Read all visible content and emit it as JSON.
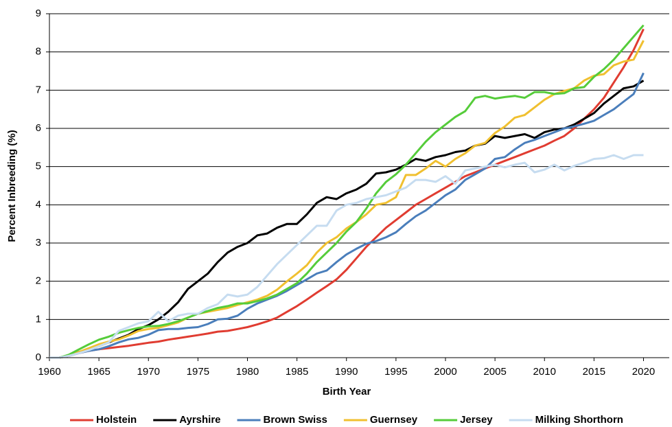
{
  "chart_data": {
    "type": "line",
    "x_label": "Birth Year",
    "y_label": "Percent Inbreeding (%)",
    "x": [
      1960,
      1961,
      1962,
      1963,
      1964,
      1965,
      1966,
      1967,
      1968,
      1969,
      1970,
      1971,
      1972,
      1973,
      1974,
      1975,
      1976,
      1977,
      1978,
      1979,
      1980,
      1981,
      1982,
      1983,
      1984,
      1985,
      1986,
      1987,
      1988,
      1989,
      1990,
      1991,
      1992,
      1993,
      1994,
      1995,
      1996,
      1997,
      1998,
      1999,
      2000,
      2001,
      2002,
      2003,
      2004,
      2005,
      2006,
      2007,
      2008,
      2009,
      2010,
      2011,
      2012,
      2013,
      2014,
      2015,
      2016,
      2017,
      2018,
      2019,
      2020
    ],
    "xlim": [
      1960,
      2022.6
    ],
    "xticks": [
      1960,
      1965,
      1970,
      1975,
      1980,
      1985,
      1990,
      1995,
      2000,
      2005,
      2010,
      2015,
      2020
    ],
    "ylim": [
      0,
      9
    ],
    "yticks": [
      0,
      1,
      2,
      3,
      4,
      5,
      6,
      7,
      8,
      9
    ],
    "grid": true,
    "legend": "bottom",
    "series": [
      {
        "name": "Holstein",
        "color": "#e03c31",
        "values": [
          0,
          0,
          0.05,
          0.12,
          0.18,
          0.22,
          0.25,
          0.28,
          0.31,
          0.35,
          0.39,
          0.42,
          0.47,
          0.51,
          0.55,
          0.59,
          0.63,
          0.68,
          0.7,
          0.75,
          0.8,
          0.87,
          0.95,
          1.05,
          1.2,
          1.35,
          1.52,
          1.7,
          1.87,
          2.05,
          2.3,
          2.6,
          2.9,
          3.15,
          3.4,
          3.6,
          3.8,
          4.0,
          4.15,
          4.3,
          4.45,
          4.6,
          4.75,
          4.85,
          4.95,
          5.05,
          5.15,
          5.25,
          5.35,
          5.45,
          5.55,
          5.68,
          5.8,
          6.0,
          6.25,
          6.5,
          6.8,
          7.2,
          7.6,
          8.05,
          8.6
        ]
      },
      {
        "name": "Ayrshire",
        "color": "#000000",
        "values": [
          0,
          0,
          0.05,
          0.15,
          0.22,
          0.3,
          0.4,
          0.5,
          0.6,
          0.75,
          0.85,
          1.0,
          1.2,
          1.45,
          1.8,
          2.0,
          2.2,
          2.5,
          2.75,
          2.9,
          3.0,
          3.2,
          3.25,
          3.4,
          3.5,
          3.5,
          3.75,
          4.05,
          4.2,
          4.15,
          4.3,
          4.4,
          4.55,
          4.82,
          4.85,
          4.92,
          5.05,
          5.2,
          5.15,
          5.25,
          5.3,
          5.38,
          5.42,
          5.55,
          5.6,
          5.8,
          5.75,
          5.8,
          5.85,
          5.75,
          5.9,
          5.97,
          6.0,
          6.1,
          6.25,
          6.4,
          6.65,
          6.85,
          7.05,
          7.1,
          7.25
        ]
      },
      {
        "name": "Brown Swiss",
        "color": "#4a7ebb",
        "values": [
          0,
          0,
          0.05,
          0.12,
          0.18,
          0.22,
          0.3,
          0.4,
          0.48,
          0.52,
          0.6,
          0.72,
          0.75,
          0.75,
          0.78,
          0.8,
          0.88,
          1.0,
          1.02,
          1.1,
          1.28,
          1.42,
          1.52,
          1.62,
          1.75,
          1.9,
          2.05,
          2.2,
          2.28,
          2.5,
          2.7,
          2.85,
          2.98,
          3.05,
          3.15,
          3.28,
          3.5,
          3.7,
          3.85,
          4.05,
          4.25,
          4.4,
          4.65,
          4.8,
          4.95,
          5.2,
          5.25,
          5.45,
          5.62,
          5.7,
          5.8,
          5.9,
          6.0,
          6.05,
          6.12,
          6.2,
          6.35,
          6.5,
          6.7,
          6.9,
          7.45
        ]
      },
      {
        "name": "Guernsey",
        "color": "#f0c030",
        "values": [
          0,
          0,
          0.05,
          0.15,
          0.25,
          0.35,
          0.42,
          0.48,
          0.58,
          0.7,
          0.75,
          0.78,
          0.85,
          0.92,
          1.05,
          1.15,
          1.2,
          1.25,
          1.3,
          1.38,
          1.45,
          1.52,
          1.62,
          1.78,
          2.0,
          2.2,
          2.42,
          2.75,
          3.0,
          3.15,
          3.38,
          3.55,
          3.75,
          4.0,
          4.05,
          4.2,
          4.78,
          4.78,
          4.95,
          5.15,
          5.0,
          5.2,
          5.35,
          5.55,
          5.62,
          5.88,
          6.05,
          6.28,
          6.35,
          6.55,
          6.75,
          6.9,
          6.98,
          7.05,
          7.25,
          7.38,
          7.42,
          7.65,
          7.75,
          7.8,
          8.3
        ]
      },
      {
        "name": "Jersey",
        "color": "#55cc3a",
        "values": [
          0,
          0,
          0.08,
          0.22,
          0.35,
          0.47,
          0.55,
          0.65,
          0.72,
          0.78,
          0.82,
          0.83,
          0.88,
          0.95,
          1.05,
          1.15,
          1.22,
          1.3,
          1.35,
          1.42,
          1.42,
          1.48,
          1.55,
          1.65,
          1.8,
          1.95,
          2.2,
          2.5,
          2.75,
          3.0,
          3.3,
          3.55,
          3.9,
          4.3,
          4.6,
          4.8,
          5.05,
          5.35,
          5.65,
          5.9,
          6.1,
          6.3,
          6.45,
          6.8,
          6.85,
          6.78,
          6.82,
          6.85,
          6.8,
          6.95,
          6.95,
          6.9,
          6.92,
          7.05,
          7.08,
          7.35,
          7.55,
          7.8,
          8.1,
          8.4,
          8.7
        ]
      },
      {
        "name": "Milking Shorthorn",
        "color": "#c6dcf0",
        "values": [
          0,
          0,
          0.05,
          0.12,
          0.2,
          0.3,
          0.4,
          0.7,
          0.8,
          0.9,
          0.95,
          1.2,
          0.95,
          1.1,
          1.15,
          1.15,
          1.3,
          1.4,
          1.65,
          1.6,
          1.65,
          1.85,
          2.15,
          2.45,
          2.7,
          2.95,
          3.2,
          3.45,
          3.45,
          3.85,
          4.0,
          4.05,
          4.15,
          4.2,
          4.25,
          4.35,
          4.45,
          4.65,
          4.65,
          4.6,
          4.75,
          4.55,
          4.9,
          4.95,
          5.0,
          5.05,
          4.98,
          5.05,
          5.1,
          4.85,
          4.92,
          5.05,
          4.9,
          5.02,
          5.1,
          5.2,
          5.22,
          5.3,
          5.2,
          5.3,
          5.3
        ]
      }
    ]
  }
}
